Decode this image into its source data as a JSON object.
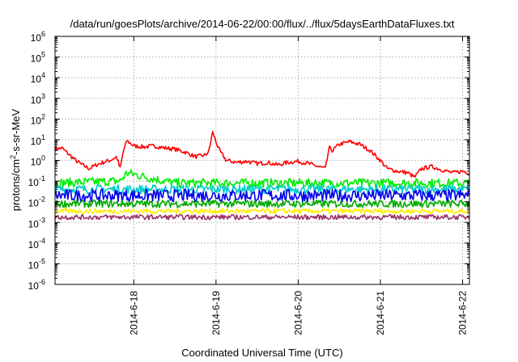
{
  "chart_data": {
    "type": "line",
    "title": "/data/run/goesPlots/archive/2014-06-22/00:00/flux/../flux/5daysEarthDataFluxes.txt",
    "xlabel": "Coordinated Universal Time (UTC)",
    "ylabel": "protons/cm²-s-sr-MeV",
    "yscale": "log",
    "ylim_exponents": [
      -6,
      6
    ],
    "ytick_labels": [
      {
        "base": "10",
        "exp": "6"
      },
      {
        "base": "10",
        "exp": "5"
      },
      {
        "base": "10",
        "exp": "4"
      },
      {
        "base": "10",
        "exp": "3"
      },
      {
        "base": "10",
        "exp": "2"
      },
      {
        "base": "10",
        "exp": "1"
      },
      {
        "base": "10",
        "exp": "0"
      },
      {
        "base": "10",
        "exp": "-1"
      },
      {
        "base": "10",
        "exp": "-2"
      },
      {
        "base": "10",
        "exp": "-3"
      },
      {
        "base": "10",
        "exp": "-4"
      },
      {
        "base": "10",
        "exp": "-5"
      },
      {
        "base": "10",
        "exp": "-6"
      }
    ],
    "xlim": [
      "2014-06-17 01:00",
      "2014-06-22 02:00"
    ],
    "xtick_labels": [
      {
        "label": "2014-6-18",
        "date": "2014-06-18 00:00"
      },
      {
        "label": "2014-6-19",
        "date": "2014-06-19 00:00"
      },
      {
        "label": "2014-6-20",
        "date": "2014-06-20 00:00"
      },
      {
        "label": "2014-6-21",
        "date": "2014-06-21 00:00"
      },
      {
        "label": "2014-6-22",
        "date": "2014-06-22 00:00"
      }
    ],
    "grid": true,
    "legend": "none",
    "series": [
      {
        "color": "#ff0000",
        "points": [
          [
            "2014-06-17 01:00",
            3.5
          ],
          [
            "2014-06-17 03:00",
            4.0
          ],
          [
            "2014-06-17 05:00",
            2.0
          ],
          [
            "2014-06-17 07:00",
            1.0
          ],
          [
            "2014-06-17 09:00",
            0.6
          ],
          [
            "2014-06-17 11:00",
            0.4
          ],
          [
            "2014-06-17 13:00",
            0.6
          ],
          [
            "2014-06-17 15:00",
            0.8
          ],
          [
            "2014-06-17 17:00",
            1.0
          ],
          [
            "2014-06-17 19:00",
            1.5
          ],
          [
            "2014-06-17 20:00",
            0.4
          ],
          [
            "2014-06-17 21:00",
            3.0
          ],
          [
            "2014-06-17 22:00",
            9.0
          ],
          [
            "2014-06-18 00:00",
            5.0
          ],
          [
            "2014-06-18 03:00",
            4.5
          ],
          [
            "2014-06-18 06:00",
            5.0
          ],
          [
            "2014-06-18 09:00",
            4.0
          ],
          [
            "2014-06-18 12:00",
            3.5
          ],
          [
            "2014-06-18 15:00",
            2.5
          ],
          [
            "2014-06-18 18:00",
            1.5
          ],
          [
            "2014-06-18 21:00",
            1.8
          ],
          [
            "2014-06-18 22:00",
            3.0
          ],
          [
            "2014-06-18 23:00",
            25.0
          ],
          [
            "2014-06-19 00:00",
            8.0
          ],
          [
            "2014-06-19 01:00",
            3.0
          ],
          [
            "2014-06-19 03:00",
            1.0
          ],
          [
            "2014-06-19 06:00",
            0.8
          ],
          [
            "2014-06-19 09:00",
            0.9
          ],
          [
            "2014-06-19 12:00",
            0.7
          ],
          [
            "2014-06-19 15:00",
            0.8
          ],
          [
            "2014-06-19 18:00",
            0.6
          ],
          [
            "2014-06-19 21:00",
            0.8
          ],
          [
            "2014-06-20 00:00",
            0.9
          ],
          [
            "2014-06-20 03:00",
            0.7
          ],
          [
            "2014-06-20 06:00",
            0.5
          ],
          [
            "2014-06-20 08:00",
            0.4
          ],
          [
            "2014-06-20 09:00",
            4.0
          ],
          [
            "2014-06-20 10:00",
            3.0
          ],
          [
            "2014-06-20 12:00",
            6.0
          ],
          [
            "2014-06-20 15:00",
            8.0
          ],
          [
            "2014-06-20 18:00",
            6.0
          ],
          [
            "2014-06-20 21:00",
            3.0
          ],
          [
            "2014-06-21 00:00",
            1.0
          ],
          [
            "2014-06-21 02:00",
            0.4
          ],
          [
            "2014-06-21 05:00",
            0.3
          ],
          [
            "2014-06-21 08:00",
            0.25
          ],
          [
            "2014-06-21 10:00",
            0.15
          ],
          [
            "2014-06-21 12:00",
            0.4
          ],
          [
            "2014-06-21 15:00",
            0.5
          ],
          [
            "2014-06-21 18:00",
            0.35
          ],
          [
            "2014-06-21 21:00",
            0.25
          ],
          [
            "2014-06-22 00:00",
            0.3
          ],
          [
            "2014-06-22 02:00",
            0.25
          ]
        ]
      },
      {
        "color": "#00ee00",
        "points": [
          [
            "2014-06-17 01:00",
            0.08
          ],
          [
            "2014-06-17 20:00",
            0.1
          ],
          [
            "2014-06-17 22:00",
            0.25
          ],
          [
            "2014-06-18 04:00",
            0.15
          ],
          [
            "2014-06-18 12:00",
            0.08
          ],
          [
            "2014-06-22 02:00",
            0.08
          ]
        ]
      },
      {
        "color": "#00cccc",
        "points": [
          [
            "2014-06-17 01:00",
            0.04
          ],
          [
            "2014-06-22 02:00",
            0.04
          ]
        ]
      },
      {
        "color": "#0000ee",
        "points": [
          [
            "2014-06-17 01:00",
            0.02
          ],
          [
            "2014-06-22 02:00",
            0.02
          ]
        ]
      },
      {
        "color": "#00aa00",
        "points": [
          [
            "2014-06-17 01:00",
            0.008
          ],
          [
            "2014-06-22 02:00",
            0.008
          ]
        ]
      },
      {
        "color": "#ffee00",
        "points": [
          [
            "2014-06-17 01:00",
            0.0035
          ],
          [
            "2014-06-22 02:00",
            0.0035
          ]
        ]
      },
      {
        "color": "#993366",
        "points": [
          [
            "2014-06-17 01:00",
            0.0018
          ],
          [
            "2014-06-22 02:00",
            0.0018
          ]
        ]
      }
    ]
  }
}
